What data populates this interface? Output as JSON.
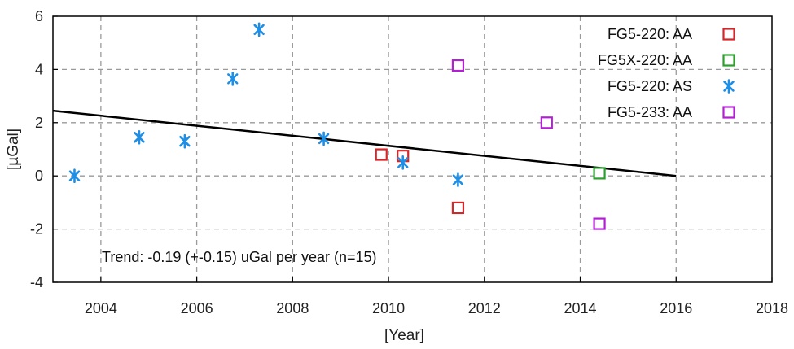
{
  "chart_data": {
    "type": "scatter",
    "xlabel": "[Year]",
    "ylabel": "[µGal]",
    "xlim": [
      2003,
      2018
    ],
    "ylim": [
      -4,
      6
    ],
    "xticks": [
      2004,
      2006,
      2008,
      2010,
      2012,
      2014,
      2016,
      2018
    ],
    "yticks": [
      -4,
      -2,
      0,
      2,
      4,
      6
    ],
    "grid": true,
    "legend_position": "top-right",
    "annotation": "Trend: -0.19 (+-0.15) uGal per year (n=15)",
    "series": [
      {
        "name": "FG5-220: AA",
        "marker": "square",
        "color": "#d62728",
        "points": [
          {
            "x": 2009.85,
            "y": 0.8
          },
          {
            "x": 2010.3,
            "y": 0.75
          },
          {
            "x": 2011.45,
            "y": -1.2
          }
        ]
      },
      {
        "name": "FG5X-220: AA",
        "marker": "square",
        "color": "#2ca02c",
        "points": [
          {
            "x": 2014.4,
            "y": 0.1
          }
        ]
      },
      {
        "name": "FG5-220: AS",
        "marker": "asterisk",
        "color": "#1f8fe6",
        "points": [
          {
            "x": 2003.45,
            "y": 0.0
          },
          {
            "x": 2004.8,
            "y": 1.45
          },
          {
            "x": 2005.75,
            "y": 1.3
          },
          {
            "x": 2006.75,
            "y": 3.65
          },
          {
            "x": 2007.3,
            "y": 5.5
          },
          {
            "x": 2008.65,
            "y": 1.4
          },
          {
            "x": 2010.3,
            "y": 0.5
          },
          {
            "x": 2011.45,
            "y": -0.15
          }
        ]
      },
      {
        "name": "FG5-233: AA",
        "marker": "square",
        "color": "#b41fd6",
        "points": [
          {
            "x": 2011.45,
            "y": 4.15
          },
          {
            "x": 2013.3,
            "y": 2.0
          },
          {
            "x": 2014.4,
            "y": -1.8
          }
        ]
      }
    ],
    "trend": {
      "color": "#000000",
      "points": [
        {
          "x": 2003.0,
          "y": 2.45
        },
        {
          "x": 2016.0,
          "y": 0.0
        }
      ]
    }
  }
}
